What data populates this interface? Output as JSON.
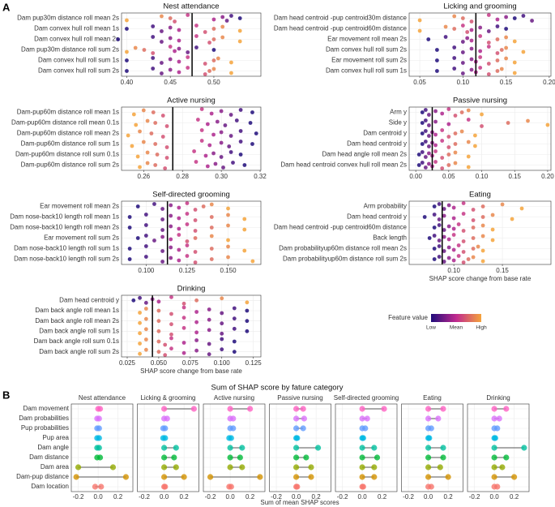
{
  "panel_labels": [
    "A",
    "B"
  ],
  "legend": {
    "title": "Feature value",
    "labels": [
      "Low",
      "Mean",
      "High"
    ],
    "colors": [
      "#1f0c7a",
      "#c0298f",
      "#f5a33b"
    ]
  },
  "chart_data": [
    {
      "type": "beeswarm",
      "title": "Nest attendance",
      "xlim": [
        0.394,
        0.554
      ],
      "xticks": [
        {
          "value": 0.4,
          "label": "0.40"
        },
        0.45,
        {
          "value": 0.5,
          "label": "0.50"
        }
      ],
      "vline": 0.475,
      "categories": [
        "Dam pup30m distance roll mean 2s",
        "Dam convex hull roll mean 1s",
        "Dam convex hull roll mean 2s",
        "Dam pup30m distance roll sum 2s",
        "Dam convex hull roll sum 1s",
        "Dam convex hull roll sum 2s"
      ],
      "values": [
        [
          0.53,
          0.52,
          0.515,
          0.51,
          0.5,
          0.47,
          0.455,
          0.45,
          0.44,
          0.4
        ],
        [
          0.4,
          0.43,
          0.44,
          0.45,
          0.46,
          0.48,
          0.49,
          0.5,
          0.51,
          0.53
        ],
        [
          0.39,
          0.43,
          0.44,
          0.45,
          0.46,
          0.48,
          0.495,
          0.5,
          0.51,
          0.53
        ],
        [
          0.5,
          0.48,
          0.47,
          0.46,
          0.455,
          0.45,
          0.43,
          0.42,
          0.41,
          0.4
        ],
        [
          0.4,
          0.43,
          0.44,
          0.45,
          0.46,
          0.47,
          0.49,
          0.5,
          0.505,
          0.52
        ],
        [
          0.4,
          0.43,
          0.44,
          0.45,
          0.46,
          0.47,
          0.49,
          0.495,
          0.5,
          0.52
        ]
      ]
    },
    {
      "type": "beeswarm",
      "title": "Licking and grooming",
      "xlim": [
        0.0377,
        0.202
      ],
      "xticks": [
        0.05,
        {
          "value": 0.1,
          "label": "0.10"
        },
        0.15,
        {
          "value": 0.2,
          "label": "0.20"
        }
      ],
      "vline": 0.115,
      "categories": [
        "Dam head centroid -pup centroid30m distance",
        "Dam head centroid -pup centroid60m distance",
        "Ear movement roll mean 2s",
        "Dam convex hull roll sum 2s",
        "Ear movement roll sum 2s",
        "Dam convex hull roll sum 1s"
      ],
      "values": [
        [
          0.16,
          0.17,
          0.18,
          0.15,
          0.14,
          0.13,
          0.11,
          0.1,
          0.09,
          0.05
        ],
        [
          0.15,
          0.14,
          0.13,
          0.12,
          0.11,
          0.1,
          0.105,
          0.09,
          0.08,
          0.05
        ],
        [
          0.06,
          0.08,
          0.1,
          0.105,
          0.11,
          0.12,
          0.13,
          0.14,
          0.15,
          0.16
        ],
        [
          0.07,
          0.09,
          0.1,
          0.11,
          0.12,
          0.13,
          0.14,
          0.145,
          0.15,
          0.17
        ],
        [
          0.07,
          0.09,
          0.1,
          0.11,
          0.115,
          0.12,
          0.13,
          0.14,
          0.15,
          0.16
        ],
        [
          0.07,
          0.09,
          0.1,
          0.11,
          0.115,
          0.12,
          0.13,
          0.14,
          0.145,
          0.16
        ]
      ]
    },
    {
      "type": "beeswarm",
      "title": "Active nursing",
      "xlim": [
        0.2486,
        0.3204
      ],
      "xticks": [
        0.26,
        0.28,
        {
          "value": 0.3,
          "label": "0.30"
        },
        0.32
      ],
      "vline": 0.275,
      "categories": [
        "Dam-pup60m distance roll mean 1s",
        "Dam-pup60m distance roll mean 0.1s",
        "Dam-pup60m distance roll mean 2s",
        "Dam-pup60m distance roll sum 1s",
        "Dam-pup60m distance roll sum 0.1s",
        "Dam-pup60m distance roll sum 2s"
      ],
      "values": [
        [
          0.316,
          0.31,
          0.305,
          0.3,
          0.295,
          0.29,
          0.27,
          0.265,
          0.26,
          0.255
        ],
        [
          0.315,
          0.308,
          0.302,
          0.298,
          0.293,
          0.288,
          0.272,
          0.266,
          0.262,
          0.256
        ],
        [
          0.318,
          0.31,
          0.305,
          0.3,
          0.296,
          0.29,
          0.27,
          0.264,
          0.258,
          0.252
        ],
        [
          0.316,
          0.31,
          0.304,
          0.3,
          0.294,
          0.29,
          0.272,
          0.266,
          0.26,
          0.254
        ],
        [
          0.31,
          0.305,
          0.3,
          0.296,
          0.292,
          0.286,
          0.272,
          0.267,
          0.262,
          0.257
        ],
        [
          0.312,
          0.306,
          0.301,
          0.297,
          0.293,
          0.287,
          0.271,
          0.266,
          0.262,
          0.258
        ]
      ]
    },
    {
      "type": "beeswarm",
      "title": "Passive nursing",
      "xlim": [
        -0.01,
        0.205
      ],
      "xticks": [
        {
          "value": 0,
          "label": "0.00"
        },
        0.05,
        {
          "value": 0.1,
          "label": "0.10"
        },
        0.15,
        {
          "value": 0.2,
          "label": "0.20"
        }
      ],
      "vline": 0.025,
      "categories": [
        "Arm y",
        "Side y",
        "Dam centroid y",
        "Dam head centroid y",
        "Dam head angle roll mean 2s",
        "Dam head centroid convex hull roll mean 2s"
      ],
      "values": [
        [
          0.01,
          0.015,
          0.02,
          0.03,
          0.04,
          0.05,
          0.06,
          0.07,
          0.08,
          0.1
        ],
        [
          0.01,
          0.015,
          0.02,
          0.03,
          0.05,
          0.08,
          0.1,
          0.14,
          0.17,
          0.2
        ],
        [
          0.01,
          0.015,
          0.02,
          0.025,
          0.03,
          0.04,
          0.05,
          0.06,
          0.07,
          0.09
        ],
        [
          0.01,
          0.015,
          0.02,
          0.025,
          0.03,
          0.04,
          0.05,
          0.06,
          0.08,
          0.09
        ],
        [
          0.005,
          0.01,
          0.015,
          0.02,
          0.025,
          0.03,
          0.04,
          0.05,
          0.06,
          0.08
        ],
        [
          0.005,
          0.01,
          0.015,
          0.02,
          0.025,
          0.03,
          0.04,
          0.05,
          0.06,
          0.08
        ]
      ]
    },
    {
      "type": "beeswarm",
      "title": "Self-directed grooming",
      "xlim": [
        0.085,
        0.17
      ],
      "xticks": [
        {
          "value": 0.1,
          "label": "0.100"
        },
        0.125,
        {
          "value": 0.15,
          "label": "0.150"
        }
      ],
      "vline": 0.113,
      "categories": [
        "Ear movement roll mean 2s",
        "Dam nose-back10 length roll mean 1s",
        "Dam nose-back10 length roll mean 2s",
        "Ear movement roll sum 2s",
        "Dam nose-back10 length roll sum 1s",
        "Dam nose-back10 length roll sum 2s"
      ],
      "values": [
        [
          0.095,
          0.105,
          0.11,
          0.115,
          0.12,
          0.125,
          0.13,
          0.135,
          0.14,
          0.15
        ],
        [
          0.09,
          0.1,
          0.11,
          0.115,
          0.12,
          0.125,
          0.13,
          0.14,
          0.15,
          0.16
        ],
        [
          0.09,
          0.1,
          0.11,
          0.115,
          0.12,
          0.125,
          0.13,
          0.14,
          0.15,
          0.16
        ],
        [
          0.095,
          0.1,
          0.105,
          0.11,
          0.115,
          0.12,
          0.125,
          0.13,
          0.14,
          0.15
        ],
        [
          0.09,
          0.1,
          0.11,
          0.115,
          0.12,
          0.125,
          0.13,
          0.14,
          0.15,
          0.16
        ],
        [
          0.09,
          0.1,
          0.11,
          0.115,
          0.12,
          0.125,
          0.13,
          0.14,
          0.15,
          0.165
        ]
      ]
    },
    {
      "type": "beeswarm",
      "title": "Eating",
      "xlim": [
        0.054,
        0.2
      ],
      "xticks": [
        {
          "value": 0.1,
          "label": "0.10"
        },
        0.15
      ],
      "vline": 0.088,
      "xlabel": "SHAP score change from base rate",
      "categories": [
        "Arm probability",
        "Dam head centroid y",
        "Dam head centroid -pup centroid60m distance",
        "Back length",
        "Dam probabilityup60m distance roll mean 2s",
        "Dam probabilityup60m distance roll sum 2s"
      ],
      "values": [
        [
          0.08,
          0.085,
          0.09,
          0.095,
          0.1,
          0.11,
          0.12,
          0.13,
          0.15,
          0.17
        ],
        [
          0.07,
          0.08,
          0.085,
          0.09,
          0.1,
          0.11,
          0.12,
          0.13,
          0.14,
          0.16
        ],
        [
          0.08,
          0.085,
          0.09,
          0.095,
          0.1,
          0.105,
          0.11,
          0.12,
          0.13,
          0.14
        ],
        [
          0.075,
          0.08,
          0.085,
          0.09,
          0.095,
          0.1,
          0.11,
          0.12,
          0.13,
          0.14
        ],
        [
          0.08,
          0.085,
          0.09,
          0.095,
          0.1,
          0.105,
          0.11,
          0.12,
          0.125,
          0.13
        ],
        [
          0.08,
          0.085,
          0.09,
          0.095,
          0.1,
          0.105,
          0.11,
          0.115,
          0.12,
          0.13
        ]
      ]
    },
    {
      "type": "beeswarm",
      "title": "Drinking",
      "xlim": [
        0.0205,
        0.131
      ],
      "xticks": [
        0.025,
        {
          "value": 0.05,
          "label": "0.050"
        },
        0.075,
        {
          "value": 0.1,
          "label": "0.100"
        },
        0.125
      ],
      "vline": 0.045,
      "xlabel": "SHAP score change from base rate",
      "categories": [
        "Dam head centroid y",
        "Dam back angle roll mean 1s",
        "Dam back angle roll mean 2s",
        "Dam back angle roll sum 1s",
        "Dam back angle roll sum 0.1s",
        "Dam back angle roll sum 2s"
      ],
      "values": [
        [
          0.03,
          0.035,
          0.04,
          0.045,
          0.05,
          0.06,
          0.07,
          0.08,
          0.1,
          0.12
        ],
        [
          0.12,
          0.11,
          0.1,
          0.09,
          0.08,
          0.07,
          0.06,
          0.05,
          0.04,
          0.035
        ],
        [
          0.12,
          0.11,
          0.1,
          0.09,
          0.08,
          0.07,
          0.06,
          0.05,
          0.04,
          0.035
        ],
        [
          0.12,
          0.11,
          0.1,
          0.09,
          0.08,
          0.07,
          0.06,
          0.05,
          0.04,
          0.035
        ],
        [
          0.11,
          0.1,
          0.09,
          0.08,
          0.07,
          0.06,
          0.055,
          0.05,
          0.04,
          0.035
        ],
        [
          0.11,
          0.1,
          0.09,
          0.08,
          0.07,
          0.06,
          0.055,
          0.05,
          0.04,
          0.035
        ]
      ]
    },
    {
      "type": "dumbbell",
      "title": "Sum of SHAP score by fature category",
      "xlabel": "Sum of mean SHAP scores",
      "categories": [
        "Dam movement",
        "Dam probabilities",
        "Pup probabilities",
        "Pup area",
        "Dam angle",
        "Dam distance",
        "Dam area",
        "Dam-pup distance",
        "Dam location"
      ],
      "colors": [
        "#ff61c3",
        "#db72fb",
        "#619cff",
        "#00b9e3",
        "#00c19f",
        "#00ba38",
        "#93aa00",
        "#d39200",
        "#f8766d"
      ],
      "xlim": [
        -0.27,
        0.35
      ],
      "xticks": [
        -0.2,
        {
          "value": 0,
          "label": "0.0"
        },
        0.2
      ],
      "facets": [
        {
          "title": "Nest attendance",
          "values": [
            [
              0,
              0.02
            ],
            [
              -0.01,
              0.01
            ],
            [
              -0.01,
              0.01
            ],
            [
              -0.01,
              0.01
            ],
            [
              -0.01,
              0.01
            ],
            [
              -0.01,
              0.02
            ],
            [
              -0.2,
              0.15
            ],
            [
              -0.22,
              0.28
            ],
            [
              -0.03,
              0.03
            ]
          ]
        },
        {
          "title": "Licking & grooming",
          "values": [
            [
              0,
              0.3
            ],
            [
              0,
              0.03
            ],
            [
              -0.01,
              0.01
            ],
            [
              -0.01,
              0.01
            ],
            [
              0,
              0.12
            ],
            [
              0,
              0.1
            ],
            [
              0,
              0.12
            ],
            [
              0,
              0.2
            ],
            [
              0,
              0.01
            ]
          ]
        },
        {
          "title": "Active nursing",
          "values": [
            [
              0,
              0.2
            ],
            [
              0,
              0.03
            ],
            [
              0,
              0.03
            ],
            [
              -0.01,
              0.01
            ],
            [
              0,
              0.12
            ],
            [
              0,
              0.1
            ],
            [
              0,
              0.12
            ],
            [
              -0.2,
              0.3
            ],
            [
              -0.01,
              0.01
            ]
          ]
        },
        {
          "title": "Passive nursing",
          "values": [
            [
              0,
              0.07
            ],
            [
              0,
              0.08
            ],
            [
              0,
              0.07
            ],
            [
              0,
              0.01
            ],
            [
              0,
              0.22
            ],
            [
              0,
              0.1
            ],
            [
              0,
              0.15
            ],
            [
              0,
              0.15
            ],
            [
              0,
              0.01
            ]
          ]
        },
        {
          "title": "Self-directed grooming",
          "values": [
            [
              0,
              0.22
            ],
            [
              0,
              0.05
            ],
            [
              0,
              0.03
            ],
            [
              0,
              0.01
            ],
            [
              0,
              0.12
            ],
            [
              0,
              0.15
            ],
            [
              0,
              0.12
            ],
            [
              0,
              0.12
            ],
            [
              0,
              0.01
            ]
          ]
        },
        {
          "title": "Eating",
          "values": [
            [
              0,
              0.15
            ],
            [
              0,
              0.1
            ],
            [
              0,
              0.03
            ],
            [
              0,
              0.01
            ],
            [
              0,
              0.15
            ],
            [
              0,
              0.15
            ],
            [
              0,
              0.12
            ],
            [
              0,
              0.2
            ],
            [
              0,
              0.03
            ]
          ]
        },
        {
          "title": "Drinking",
          "values": [
            [
              0,
              0.12
            ],
            [
              0,
              0.05
            ],
            [
              0,
              0.03
            ],
            [
              0,
              0.01
            ],
            [
              0,
              0.3
            ],
            [
              0,
              0.12
            ],
            [
              0,
              0.08
            ],
            [
              0,
              0.2
            ],
            [
              0,
              0.03
            ]
          ]
        }
      ]
    }
  ]
}
